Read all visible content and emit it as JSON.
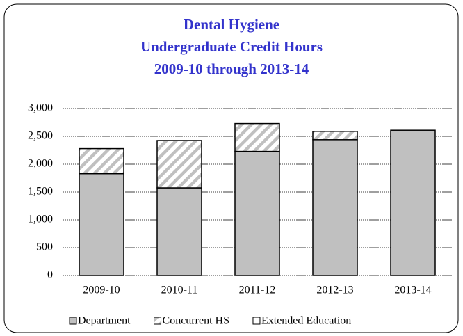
{
  "chart_data": {
    "type": "stacked_bar",
    "title": [
      "Dental Hygiene",
      "Undergraduate Credit Hours",
      "2009-10 through 2013-14"
    ],
    "title_color": "#3333cc",
    "categories": [
      "2009-10",
      "2010-11",
      "2011-12",
      "2012-13",
      "2013-14"
    ],
    "series": [
      {
        "name": "Department",
        "color": "#c0c0c0",
        "values": [
          1830,
          1575,
          2230,
          2440,
          2610
        ]
      },
      {
        "name": "Concurrent HS",
        "color": "#c0c0c0",
        "pattern": "hatch",
        "values": [
          450,
          850,
          500,
          150,
          0
        ]
      },
      {
        "name": "Extended Education",
        "color": "#ffffff",
        "values": [
          0,
          0,
          0,
          0,
          0
        ]
      }
    ],
    "ylim": [
      0,
      3000
    ],
    "yticks": [
      0,
      500,
      {
        "value": 1000,
        "label": "1,000"
      },
      {
        "value": 1500,
        "label": "1,500"
      },
      {
        "value": 2000,
        "label": "2,000"
      },
      {
        "value": 2500,
        "label": "2,500"
      },
      {
        "value": 3000,
        "label": "3,000"
      }
    ],
    "grid": true,
    "legend": "bottom"
  }
}
